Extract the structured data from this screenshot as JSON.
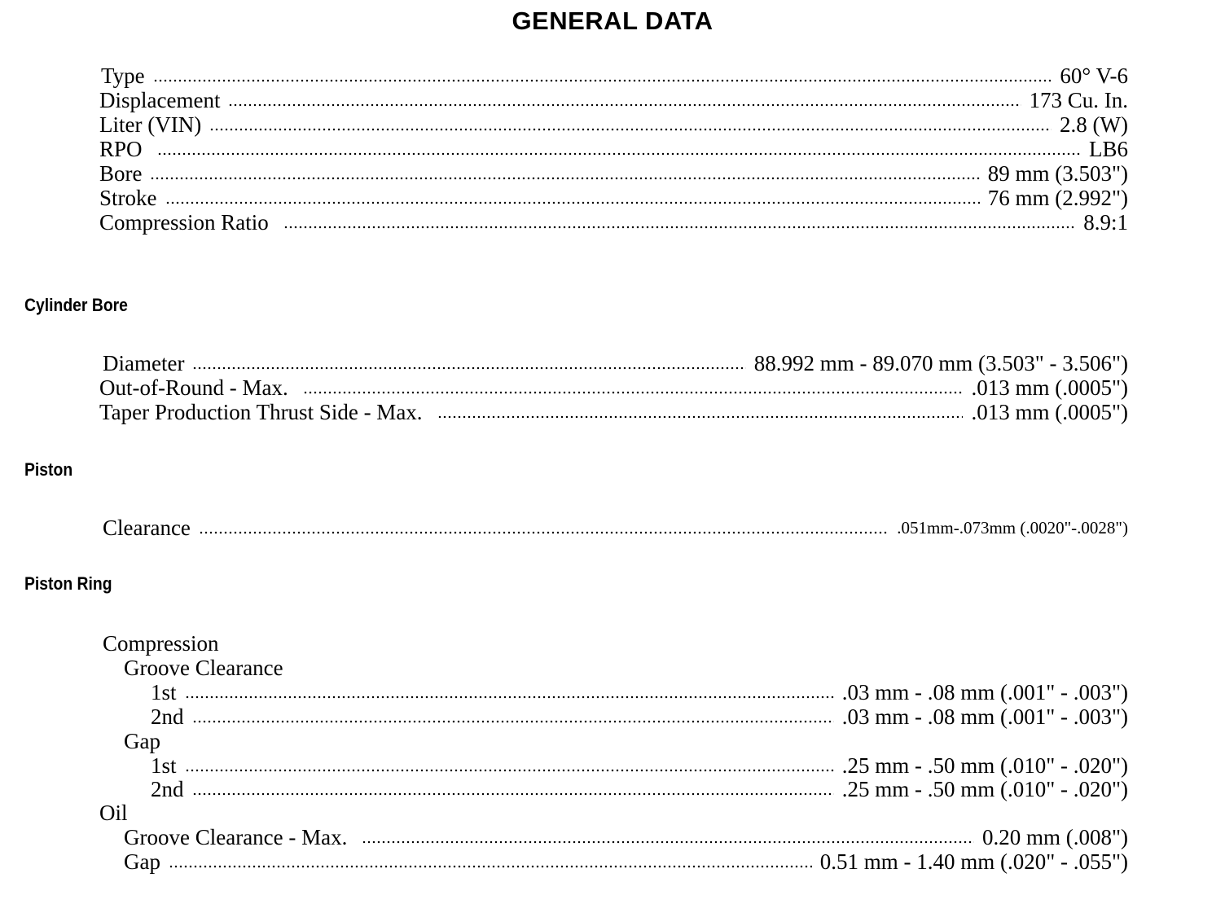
{
  "title": "GENERAL DATA",
  "general": [
    {
      "label": "Type",
      "value": "60° V-6"
    },
    {
      "label": "Displacement",
      "value": "173 Cu. In."
    },
    {
      "label": "Liter (VIN)",
      "value": "2.8 (W)"
    },
    {
      "label": "RPO",
      "value": "LB6"
    },
    {
      "label": "Bore",
      "value": "89 mm (3.503\")"
    },
    {
      "label": "Stroke",
      "value": "76 mm (2.992\")"
    },
    {
      "label": "Compression Ratio",
      "value": "8.9:1"
    }
  ],
  "cylinder_bore": {
    "heading": "Cylinder Bore",
    "rows": [
      {
        "label": "Diameter",
        "value": "88.992 mm - 89.070 mm (3.503\" - 3.506\")"
      },
      {
        "label": "Out-of-Round - Max.",
        "value": ".013 mm (.0005\")"
      },
      {
        "label": "Taper Production Thrust Side - Max.",
        "value": ".013 mm (.0005\")"
      }
    ]
  },
  "piston": {
    "heading": "Piston",
    "rows": [
      {
        "label": "Clearance",
        "value": ".051mm-.073mm (.0020\"-.0028\")"
      }
    ]
  },
  "piston_ring": {
    "heading": "Piston Ring",
    "compression": "Compression",
    "groove_clearance": "Groove Clearance",
    "groove_rows": [
      {
        "label": "1st",
        "value": ".03 mm - .08 mm (.001\" - .003\")"
      },
      {
        "label": "2nd",
        "value": ".03 mm - .08 mm (.001\" - .003\")"
      }
    ],
    "gap": "Gap",
    "gap_rows": [
      {
        "label": "1st",
        "value": ".25 mm - .50 mm (.010\" - .020\")"
      },
      {
        "label": "2nd",
        "value": ".25 mm - .50 mm (.010\" - .020\")"
      }
    ],
    "oil": "Oil",
    "oil_rows": [
      {
        "label": "Groove Clearance - Max.",
        "value": "0.20 mm (.008\")"
      },
      {
        "label": "Gap",
        "value": "0.51 mm - 1.40 mm (.020\" - .055\")"
      }
    ]
  }
}
